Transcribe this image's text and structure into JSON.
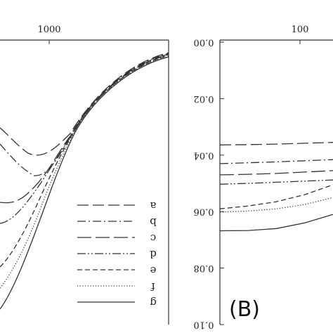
{
  "chart_data": [
    {
      "panel": "A",
      "type": "line",
      "x_top_ticks": [
        "1000"
      ],
      "legend": [
        "a",
        "b",
        "c",
        "d",
        "e",
        "f",
        "g"
      ],
      "series_styles": [
        {
          "label": "a",
          "dash": "16,6"
        },
        {
          "label": "b",
          "dash": "12,4,2,4"
        },
        {
          "label": "c",
          "dash": "20,6"
        },
        {
          "label": "d",
          "dash": "12,3,2,3,2,3"
        },
        {
          "label": "e",
          "dash": "7,4"
        },
        {
          "label": "f",
          "dash": "1.2,2.5"
        },
        {
          "label": "g",
          "dash": ""
        }
      ]
    },
    {
      "panel": "B",
      "type": "line",
      "panel_label": "(B)",
      "x_top_ticks": [
        "100"
      ],
      "y_ticks": [
        "0.00",
        "0.02",
        "0.04",
        "0.06",
        "0.08",
        "0.10"
      ],
      "ylim": [
        0.0,
        0.1
      ],
      "series": [
        {
          "dash": "16,6",
          "y": [
            0.0364,
            0.0363,
            0.0361,
            0.0358,
            0.0355
          ]
        },
        {
          "dash": "12,4,2,4",
          "y": [
            0.043,
            0.0427,
            0.0424,
            0.042,
            0.0416
          ]
        },
        {
          "dash": "20,6",
          "y": [
            0.047,
            0.0468,
            0.0465,
            0.046,
            0.0455
          ]
        },
        {
          "dash": "12,3,2,3,2,3",
          "y": [
            0.0503,
            0.05,
            0.0496,
            0.0492,
            0.0488
          ]
        },
        {
          "dash": "7,4",
          "y": [
            0.059,
            0.058,
            0.0565,
            0.054,
            0.0505
          ]
        },
        {
          "dash": "1.2,2.5",
          "y": [
            0.0602,
            0.0598,
            0.059,
            0.0575,
            0.055
          ]
        },
        {
          "dash": "",
          "y": [
            0.0668,
            0.0667,
            0.066,
            0.064,
            0.061
          ]
        }
      ]
    }
  ]
}
